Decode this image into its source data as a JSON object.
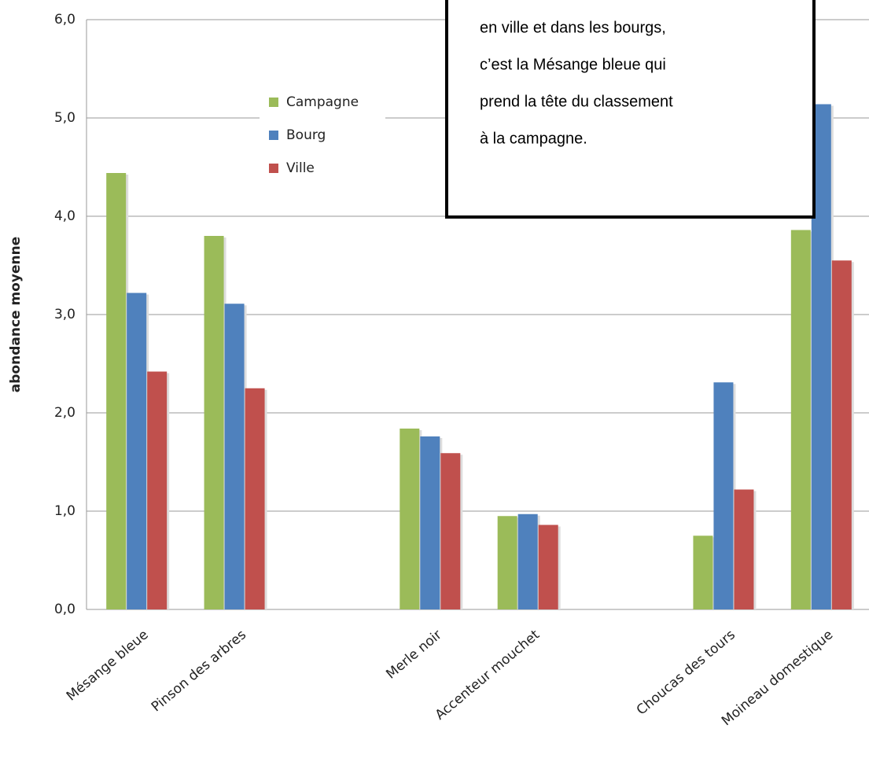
{
  "chart_data": {
    "type": "bar",
    "y_label": "abondance moyenne",
    "categories": [
      "Mésange bleue",
      "Pinson des arbres",
      null,
      "Merle noir",
      "Accenteur mouchet",
      null,
      "Choucas des tours",
      "Moineau domestique"
    ],
    "series": [
      {
        "name": "Campagne",
        "color": "#9bbb59",
        "values": [
          4.44,
          3.8,
          null,
          1.84,
          0.95,
          null,
          0.75,
          3.86
        ]
      },
      {
        "name": "Bourg",
        "color": "#4f81bd",
        "values": [
          3.22,
          3.11,
          null,
          1.76,
          0.97,
          null,
          2.31,
          5.14
        ]
      },
      {
        "name": "Ville",
        "color": "#c0504d",
        "values": [
          2.42,
          2.25,
          null,
          1.59,
          0.86,
          null,
          1.22,
          3.55
        ]
      }
    ],
    "ylim": [
      0,
      6
    ],
    "yticks": [
      {
        "value": 0,
        "label": "0,0"
      },
      {
        "value": 1,
        "label": "1,0"
      },
      {
        "value": 2,
        "label": "2,0"
      },
      {
        "value": 3,
        "label": "3,0"
      },
      {
        "value": 4,
        "label": "4,0"
      },
      {
        "value": 5,
        "label": "5,0"
      },
      {
        "value": 6,
        "label": "6,0"
      }
    ],
    "grid": true,
    "legend": "upper-left",
    "annotation": [
      "en ville et dans les bourgs,",
      "c’est la Mésange bleue qui",
      "prend la tête du classement",
      "à la campagne."
    ]
  }
}
